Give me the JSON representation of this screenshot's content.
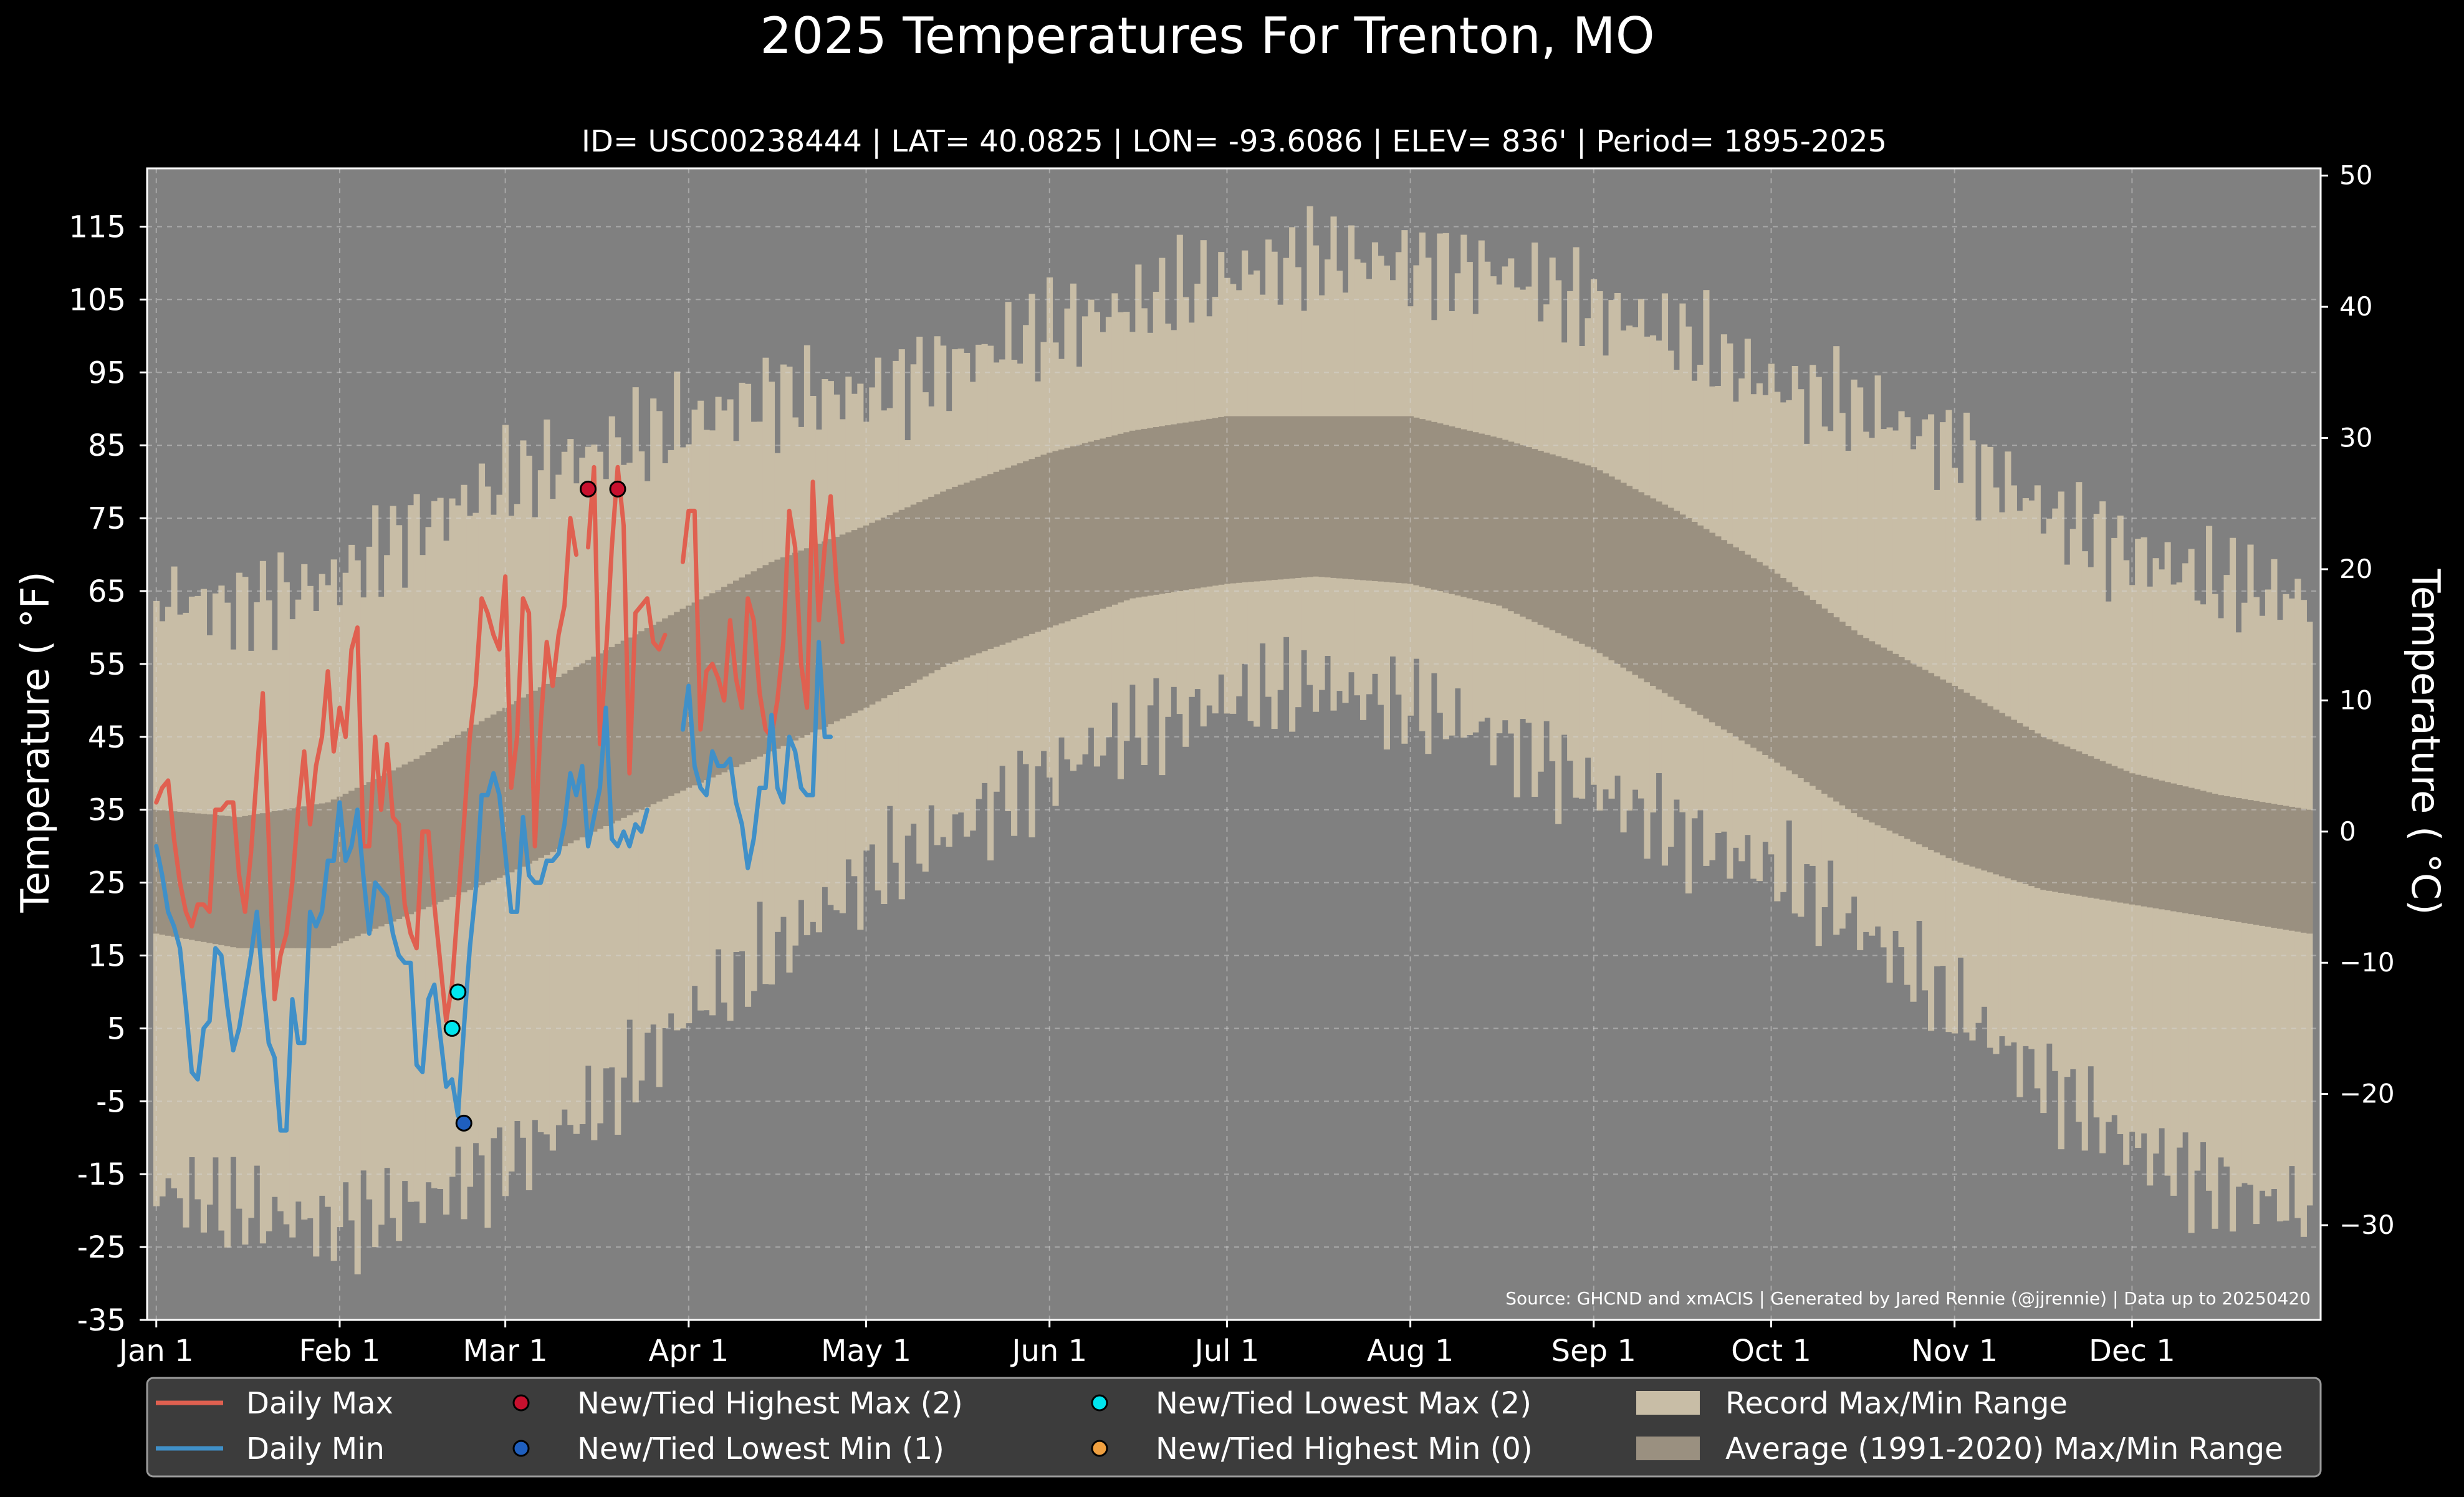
{
  "chart_data": {
    "type": "line",
    "title": "2025 Temperatures For Trenton, MO",
    "subtitle": "ID= USC00238444 | LAT= 40.0825 | LON= -93.6086 | ELEV= 836' | Period= 1895-2025",
    "ylabel": "Temperature ( °F)",
    "y2label": "Temperature ( °C)",
    "source": "Source: GHCND and xmACIS | Generated by Jared Rennie (@jjrennie) | Data up to 20250420",
    "ylim": [
      -35,
      123
    ],
    "y_ticks": [
      -35,
      -25,
      -15,
      -5,
      5,
      15,
      25,
      35,
      45,
      55,
      65,
      75,
      85,
      95,
      105,
      115
    ],
    "y2_ticks": [
      -30,
      -20,
      -10,
      0,
      10,
      20,
      30,
      40,
      50
    ],
    "x_ticks": [
      {
        "day": 1,
        "label": "Jan 1"
      },
      {
        "day": 32,
        "label": "Feb 1"
      },
      {
        "day": 60,
        "label": "Mar 1"
      },
      {
        "day": 91,
        "label": "Apr 1"
      },
      {
        "day": 121,
        "label": "May 1"
      },
      {
        "day": 152,
        "label": "Jun 1"
      },
      {
        "day": 182,
        "label": "Jul 1"
      },
      {
        "day": 213,
        "label": "Aug 1"
      },
      {
        "day": 244,
        "label": "Sep 1"
      },
      {
        "day": 274,
        "label": "Oct 1"
      },
      {
        "day": 305,
        "label": "Nov 1"
      },
      {
        "day": 335,
        "label": "Dec 1"
      }
    ],
    "grid": true,
    "legend_position": "bottom",
    "record_max_anchors": [
      [
        1,
        64
      ],
      [
        15,
        63
      ],
      [
        30,
        66
      ],
      [
        45,
        74
      ],
      [
        60,
        80
      ],
      [
        75,
        84
      ],
      [
        91,
        88
      ],
      [
        105,
        92
      ],
      [
        121,
        92
      ],
      [
        135,
        96
      ],
      [
        152,
        101
      ],
      [
        166,
        104
      ],
      [
        182,
        108
      ],
      [
        197,
        111
      ],
      [
        213,
        110
      ],
      [
        228,
        109
      ],
      [
        244,
        104
      ],
      [
        258,
        100
      ],
      [
        274,
        93
      ],
      [
        289,
        90
      ],
      [
        305,
        85
      ],
      [
        320,
        76
      ],
      [
        335,
        70
      ],
      [
        350,
        66
      ],
      [
        365,
        64
      ]
    ],
    "record_min_anchors": [
      [
        1,
        -17
      ],
      [
        15,
        -20
      ],
      [
        30,
        -22
      ],
      [
        45,
        -19
      ],
      [
        60,
        -13
      ],
      [
        75,
        -6
      ],
      [
        91,
        7
      ],
      [
        105,
        15
      ],
      [
        121,
        26
      ],
      [
        135,
        32
      ],
      [
        152,
        40
      ],
      [
        166,
        46
      ],
      [
        182,
        50
      ],
      [
        197,
        52
      ],
      [
        213,
        49
      ],
      [
        228,
        45
      ],
      [
        244,
        38
      ],
      [
        258,
        32
      ],
      [
        274,
        27
      ],
      [
        289,
        19
      ],
      [
        305,
        8
      ],
      [
        320,
        -2
      ],
      [
        335,
        -11
      ],
      [
        350,
        -17
      ],
      [
        365,
        -20
      ]
    ],
    "normal_max_anchors": [
      [
        1,
        35
      ],
      [
        15,
        34
      ],
      [
        30,
        36
      ],
      [
        45,
        42
      ],
      [
        60,
        49
      ],
      [
        75,
        56
      ],
      [
        91,
        63
      ],
      [
        105,
        69
      ],
      [
        121,
        74
      ],
      [
        135,
        79
      ],
      [
        152,
        84
      ],
      [
        166,
        87
      ],
      [
        182,
        89
      ],
      [
        197,
        89
      ],
      [
        213,
        89
      ],
      [
        228,
        86
      ],
      [
        244,
        82
      ],
      [
        258,
        76
      ],
      [
        274,
        68
      ],
      [
        289,
        59
      ],
      [
        305,
        52
      ],
      [
        320,
        45
      ],
      [
        335,
        40
      ],
      [
        350,
        37
      ],
      [
        365,
        35
      ]
    ],
    "normal_min_anchors": [
      [
        1,
        18
      ],
      [
        15,
        16
      ],
      [
        30,
        16
      ],
      [
        45,
        21
      ],
      [
        60,
        26
      ],
      [
        75,
        32
      ],
      [
        91,
        38
      ],
      [
        105,
        43
      ],
      [
        121,
        49
      ],
      [
        135,
        55
      ],
      [
        152,
        60
      ],
      [
        166,
        64
      ],
      [
        182,
        66
      ],
      [
        197,
        67
      ],
      [
        213,
        66
      ],
      [
        228,
        63
      ],
      [
        244,
        57
      ],
      [
        258,
        50
      ],
      [
        274,
        42
      ],
      [
        289,
        34
      ],
      [
        305,
        28
      ],
      [
        320,
        24
      ],
      [
        335,
        22
      ],
      [
        350,
        20
      ],
      [
        365,
        18
      ]
    ],
    "series": [
      {
        "name": "Daily Max",
        "color": "#e06050",
        "values": [
          36,
          38,
          39,
          31,
          25,
          21,
          19,
          22,
          22,
          21,
          35,
          35,
          36,
          36,
          26,
          21,
          29,
          40,
          51,
          31,
          9,
          15,
          18,
          25,
          35,
          43,
          33,
          41,
          45,
          54,
          43,
          49,
          45,
          57,
          60,
          30,
          30,
          45,
          35,
          44,
          34,
          33,
          22,
          18,
          16,
          32,
          32,
          22,
          14,
          6,
          11,
          22,
          33,
          45,
          52,
          64,
          62,
          59,
          57,
          67,
          38,
          45,
          64,
          62,
          30,
          47,
          58,
          52,
          59,
          63,
          75,
          70,
          null,
          71,
          82,
          44,
          56,
          71,
          82,
          74,
          40,
          62,
          63,
          64,
          58,
          57,
          59,
          null,
          null,
          69,
          76,
          76,
          46,
          54,
          55,
          53,
          50,
          61,
          53,
          49,
          64,
          61,
          51,
          46,
          45,
          50,
          58,
          76,
          71,
          55,
          49,
          80,
          61,
          71,
          78,
          66,
          58
        ]
      },
      {
        "name": "Daily Min",
        "color": "#4090c8",
        "values": [
          30,
          26,
          21,
          19,
          16,
          8,
          -1,
          -2,
          5,
          6,
          16,
          15,
          8,
          2,
          5,
          10,
          15,
          21,
          11,
          3,
          1,
          -9,
          -9,
          9,
          3,
          3,
          21,
          19,
          21,
          28,
          28,
          36,
          28,
          30,
          35,
          26,
          18,
          25,
          24,
          23,
          18,
          15,
          14,
          14,
          0,
          -1,
          9,
          11,
          4,
          -3,
          -2,
          -7,
          5,
          16,
          24,
          37,
          37,
          40,
          37,
          29,
          21,
          21,
          34,
          26,
          25,
          25,
          28,
          28,
          29,
          33,
          40,
          37,
          41,
          30,
          34,
          38,
          49,
          31,
          30,
          32,
          30,
          33,
          32,
          35,
          null,
          null,
          null,
          null,
          null,
          46,
          52,
          41,
          38,
          37,
          43,
          41,
          41,
          42,
          36,
          33,
          27,
          31,
          38,
          38,
          48,
          38,
          36,
          45,
          43,
          38,
          37,
          37,
          58,
          45,
          45
        ]
      }
    ],
    "record_points": [
      {
        "series": "New/Tied Highest Max (2)",
        "color": "#c8102e",
        "points": [
          [
            74,
            79
          ],
          [
            79,
            79
          ]
        ]
      },
      {
        "series": "New/Tied Lowest Min (1)",
        "color": "#1f5fbf",
        "points": [
          [
            53,
            -8
          ]
        ]
      },
      {
        "series": "New/Tied Lowest Max (2)",
        "color": "#00e5ee",
        "points": [
          [
            52,
            10
          ],
          [
            51,
            5
          ]
        ]
      },
      {
        "series": "New/Tied Highest Min (0)",
        "color": "#f0a040",
        "points": []
      }
    ],
    "legend": [
      {
        "label": "Daily Max",
        "kind": "line",
        "color": "#e06050"
      },
      {
        "label": "Daily Min",
        "kind": "line",
        "color": "#4090c8"
      },
      {
        "label": "New/Tied Highest Max (2)",
        "kind": "dot",
        "color": "#c8102e"
      },
      {
        "label": "New/Tied Lowest Min (1)",
        "kind": "dot",
        "color": "#1f5fbf"
      },
      {
        "label": "New/Tied Lowest Max (2)",
        "kind": "dot",
        "color": "#00e5ee"
      },
      {
        "label": "New/Tied Highest Min (0)",
        "kind": "dot",
        "color": "#f0a040"
      },
      {
        "label": "Record Max/Min Range",
        "kind": "patch",
        "color": "#c8bda6"
      },
      {
        "label": "Average (1991-2020) Max/Min Range",
        "kind": "patch",
        "color": "#9a9080"
      }
    ],
    "colors": {
      "background": "#000000",
      "plot_background": "#808080",
      "record_range": "#c8bda6",
      "average_range": "#9a9080",
      "legend_background": "#3c3c3c"
    }
  }
}
